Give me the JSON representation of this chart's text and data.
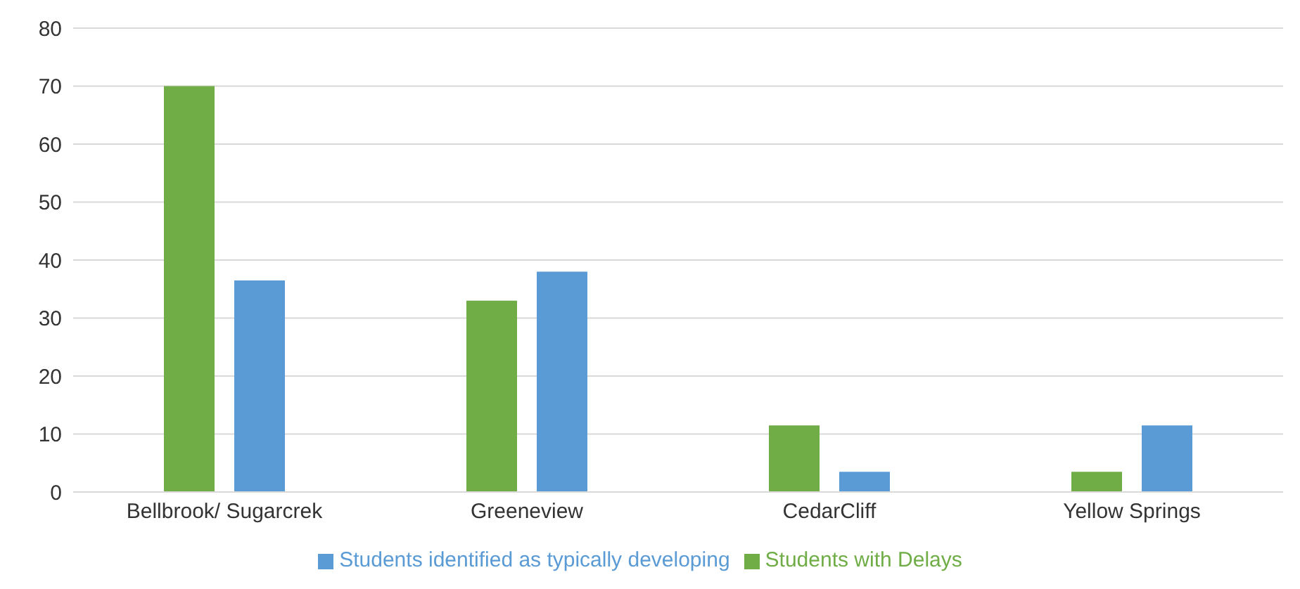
{
  "chart_data": {
    "type": "bar",
    "categories": [
      "Bellbrook/ Sugarcrek",
      "Greeneview",
      "CedarCliff",
      "Yellow Springs"
    ],
    "series": [
      {
        "name": "Students with Delays",
        "color": "#70ad47",
        "values": [
          70,
          33,
          11.5,
          3.5
        ]
      },
      {
        "name": "Students identified as typically developing",
        "color": "#5b9bd5",
        "values": [
          36.5,
          38,
          3.5,
          11.5
        ]
      }
    ],
    "ylim": [
      0,
      80
    ],
    "yticks": [
      0,
      10,
      20,
      30,
      40,
      50,
      60,
      70,
      80
    ],
    "grid": "y",
    "legend": "bottom"
  }
}
